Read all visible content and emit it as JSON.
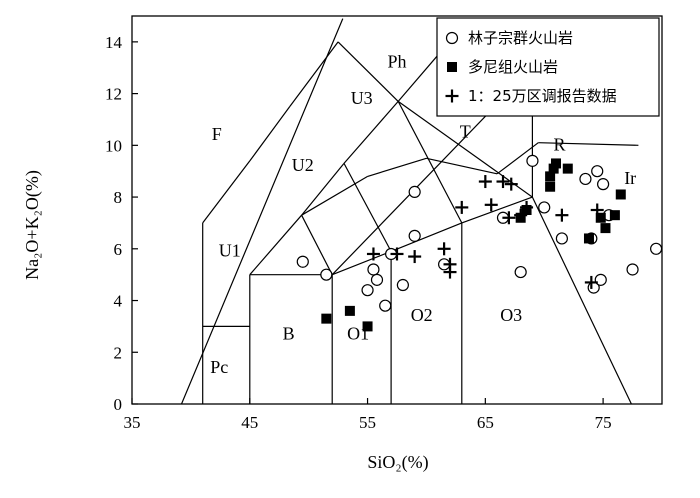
{
  "chart_data": {
    "type": "scatter",
    "title": "",
    "xlabel": "SiO₂(%)",
    "ylabel": "Na₂O+K₂O(%)",
    "xlim": [
      35,
      80
    ],
    "ylim": [
      0,
      15
    ],
    "xticks": [
      35,
      45,
      55,
      65,
      75
    ],
    "yticks": [
      0,
      2,
      4,
      6,
      8,
      10,
      12,
      14
    ],
    "grid": false,
    "legend_position": "top-right",
    "series": [
      {
        "name": "林子宗群火山岩",
        "marker": "open-circle",
        "points": [
          [
            49.5,
            5.5
          ],
          [
            51.5,
            5.0
          ],
          [
            55.0,
            4.4
          ],
          [
            55.5,
            5.2
          ],
          [
            55.8,
            4.8
          ],
          [
            56.5,
            3.8
          ],
          [
            57.0,
            5.8
          ],
          [
            58.0,
            4.6
          ],
          [
            59.0,
            6.5
          ],
          [
            59.0,
            8.2
          ],
          [
            61.5,
            5.4
          ],
          [
            66.5,
            7.2
          ],
          [
            68.0,
            5.1
          ],
          [
            69.0,
            9.4
          ],
          [
            70.0,
            7.6
          ],
          [
            71.5,
            6.4
          ],
          [
            73.5,
            8.7
          ],
          [
            74.0,
            6.4
          ],
          [
            74.2,
            4.5
          ],
          [
            74.5,
            9.0
          ],
          [
            74.8,
            4.8
          ],
          [
            75.0,
            8.5
          ],
          [
            75.5,
            7.3
          ],
          [
            77.5,
            5.2
          ],
          [
            79.5,
            6.0
          ]
        ]
      },
      {
        "name": "多尼组火山岩",
        "marker": "filled-square",
        "points": [
          [
            51.5,
            3.3
          ],
          [
            53.5,
            3.6
          ],
          [
            55.0,
            3.0
          ],
          [
            68.0,
            7.2
          ],
          [
            68.5,
            7.5
          ],
          [
            70.5,
            8.4
          ],
          [
            70.5,
            8.8
          ],
          [
            70.8,
            9.1
          ],
          [
            71.0,
            9.3
          ],
          [
            72.0,
            9.1
          ],
          [
            73.8,
            6.4
          ],
          [
            74.8,
            7.2
          ],
          [
            75.2,
            6.8
          ],
          [
            76.0,
            7.3
          ],
          [
            76.5,
            8.1
          ]
        ]
      },
      {
        "name": "1：25万区调报告数据",
        "marker": "plus",
        "points": [
          [
            55.5,
            5.8
          ],
          [
            57.5,
            5.8
          ],
          [
            59.0,
            5.7
          ],
          [
            61.5,
            6.0
          ],
          [
            62.0,
            5.4
          ],
          [
            62.0,
            5.1
          ],
          [
            63.0,
            7.6
          ],
          [
            65.0,
            8.6
          ],
          [
            65.5,
            7.7
          ],
          [
            66.5,
            8.6
          ],
          [
            67.0,
            7.2
          ],
          [
            67.2,
            8.5
          ],
          [
            68.0,
            7.3
          ],
          [
            68.5,
            7.6
          ],
          [
            71.5,
            7.3
          ],
          [
            74.0,
            4.7
          ],
          [
            74.5,
            7.5
          ]
        ]
      }
    ],
    "regions": [
      "F",
      "Ph",
      "U3",
      "U2",
      "U1",
      "T",
      "R",
      "Ir",
      "Pc",
      "B",
      "O1",
      "O2",
      "O3"
    ]
  }
}
